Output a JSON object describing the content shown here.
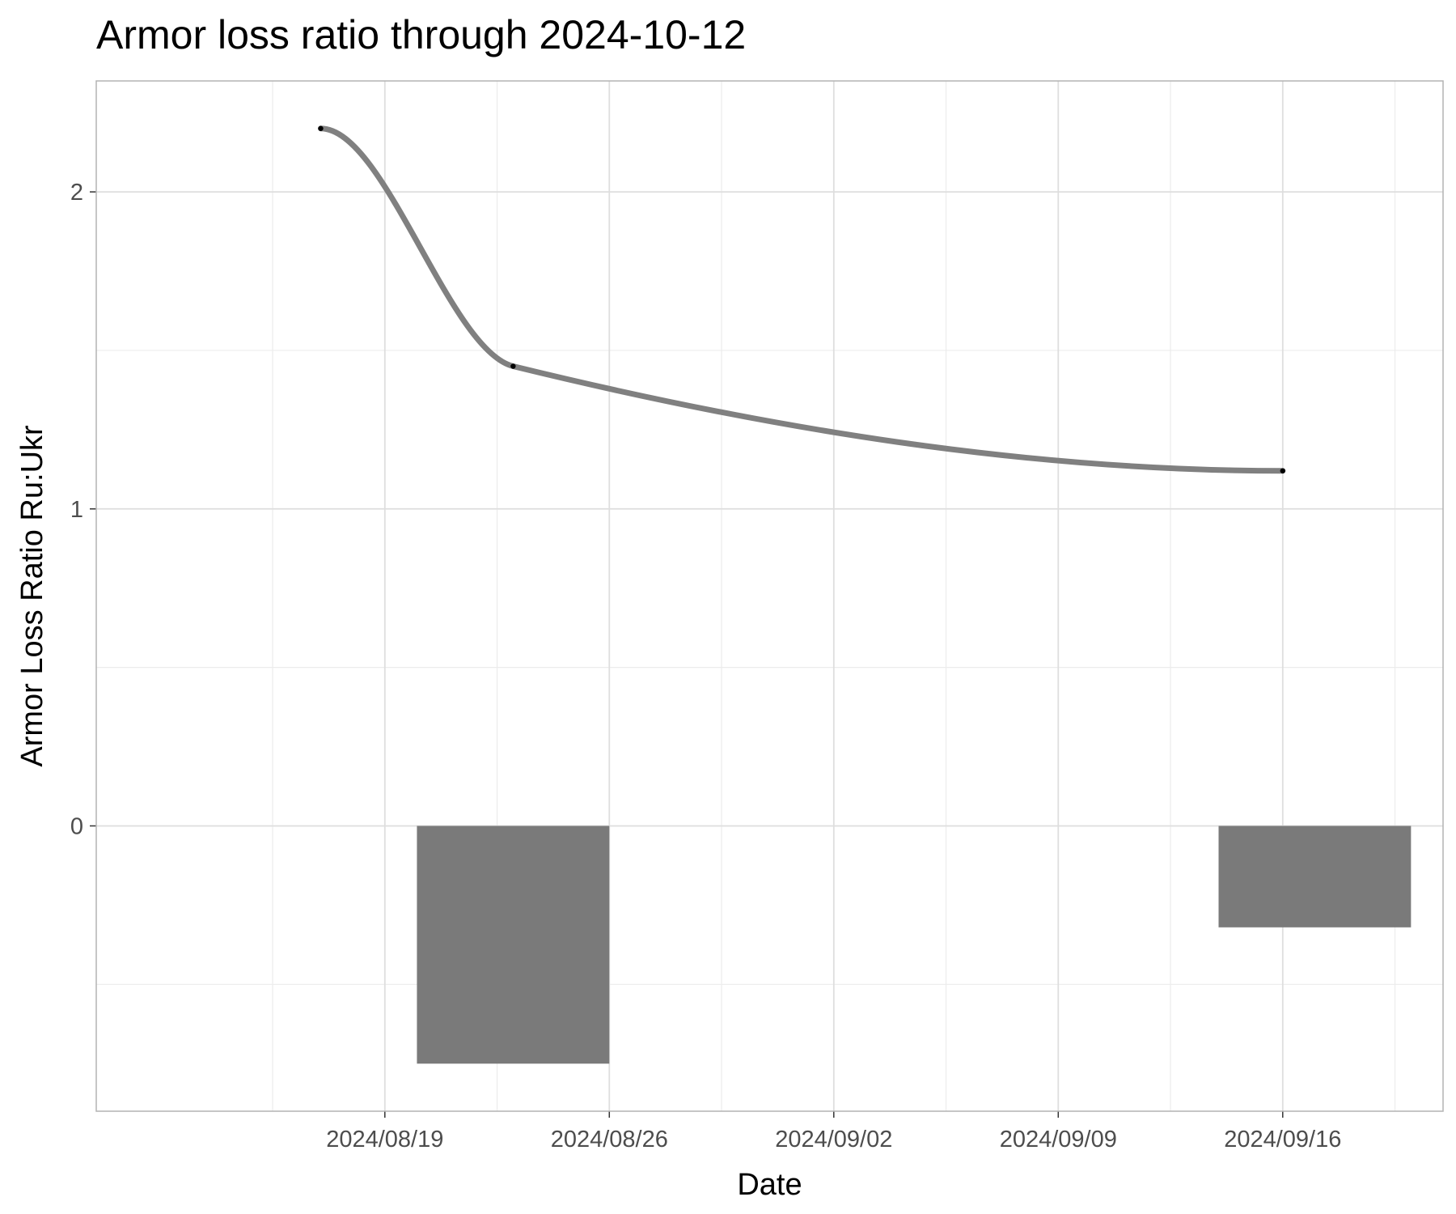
{
  "chart_data": {
    "type": "bar",
    "title": "Armor loss ratio through 2024-10-12",
    "xlabel": "Date",
    "ylabel": "Armor Loss Ratio Ru:Ukr",
    "x_ticks": [
      "2024/08/19",
      "2024/08/26",
      "2024/09/02",
      "2024/09/09",
      "2024/09/16"
    ],
    "y_ticks": [
      0,
      1,
      2
    ],
    "xlim": [
      "2024-08-10",
      "2024-09-21"
    ],
    "ylim": [
      -0.9,
      2.35
    ],
    "grid": true,
    "bars": [
      {
        "start": "2024-08-20",
        "end": "2024-08-26",
        "value": -0.75
      },
      {
        "start": "2024-09-14",
        "end": "2024-09-20",
        "value": -0.32
      }
    ],
    "line": {
      "x": [
        "2024-08-17",
        "2024-08-23",
        "2024-09-16"
      ],
      "y": [
        2.2,
        1.45,
        1.12
      ]
    },
    "colors": {
      "bar": "#7a7a7a",
      "line": "#808080",
      "point": "#000000",
      "grid_major": "#dedede",
      "grid_minor": "#ececec",
      "panel_border": "#b3b3b3"
    }
  }
}
